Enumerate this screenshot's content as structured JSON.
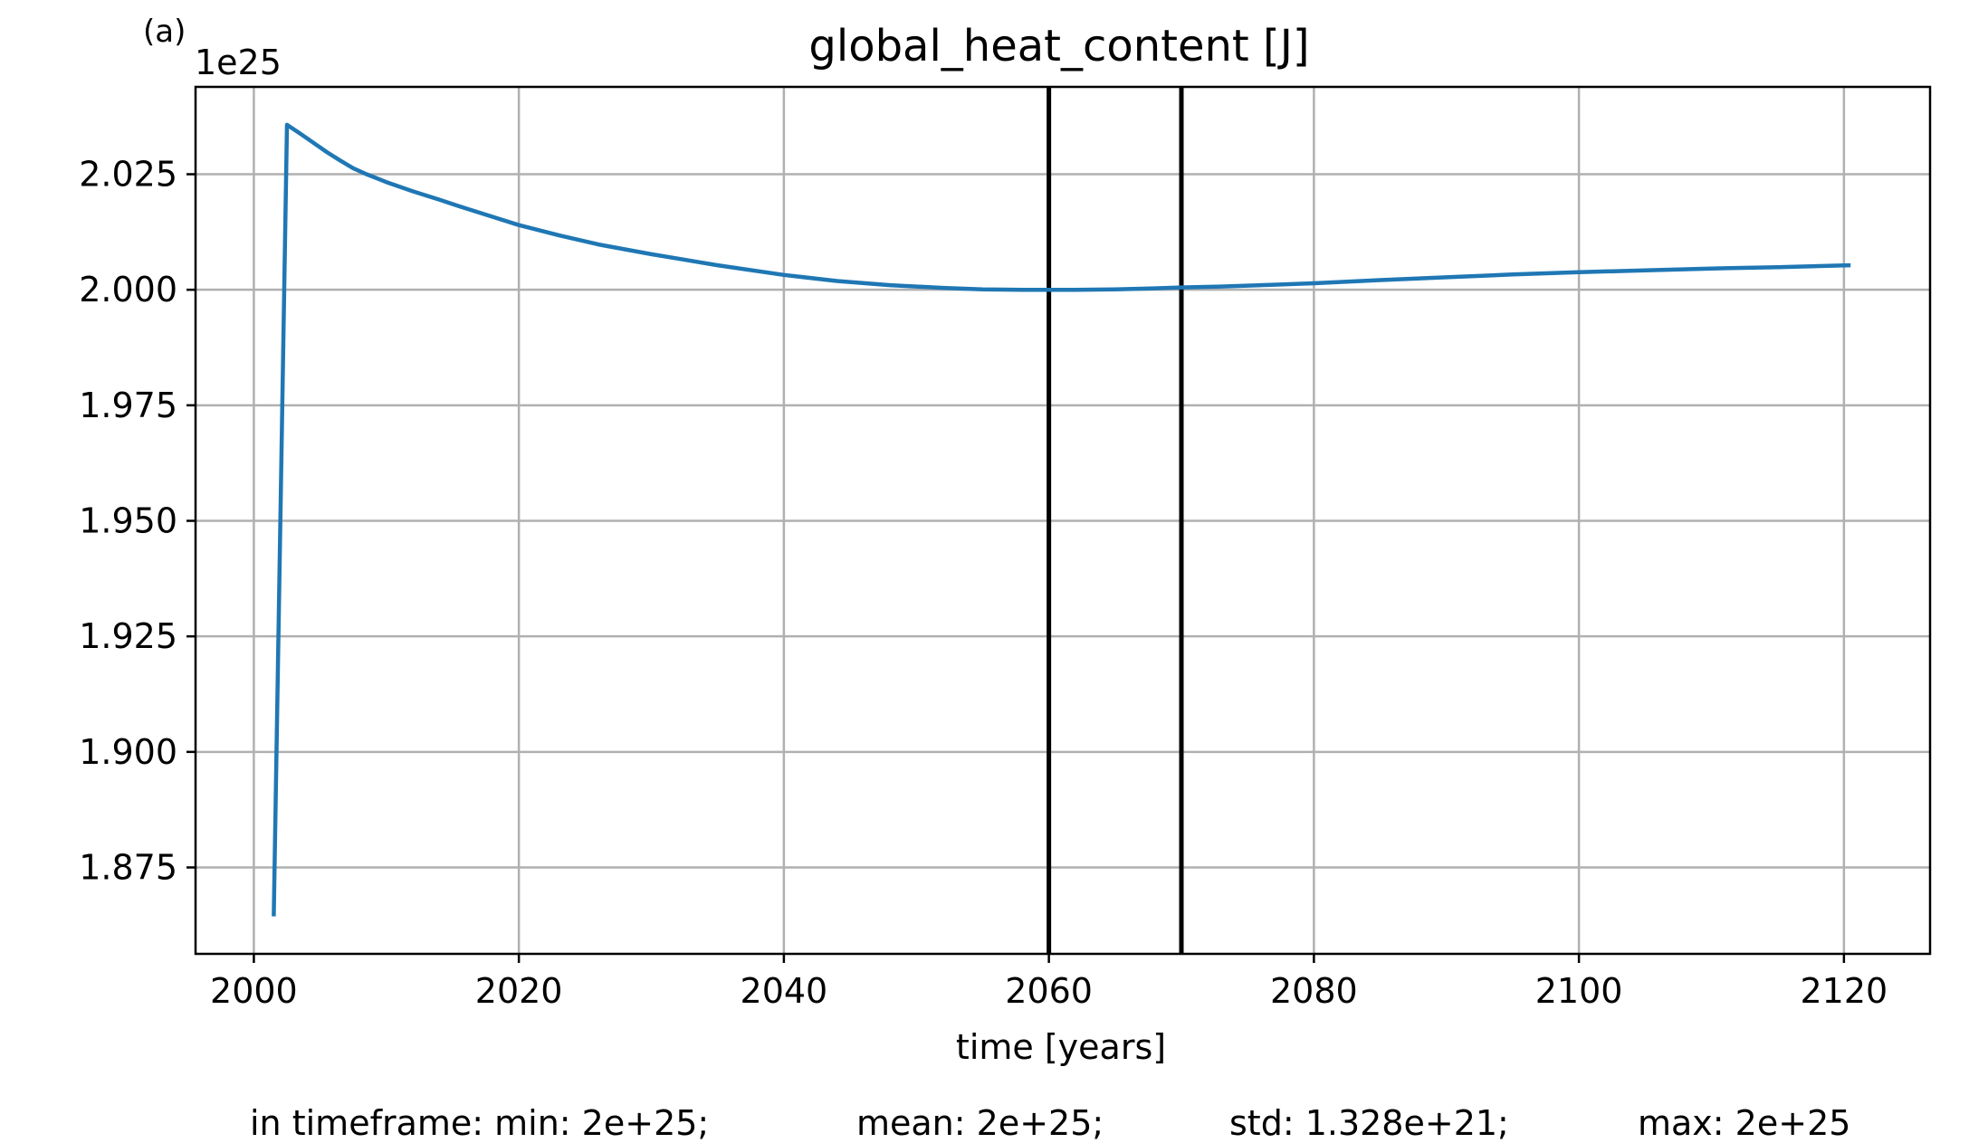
{
  "panel_label": "(a)",
  "chart_data": {
    "type": "line",
    "title": "global_heat_content [J]",
    "xlabel": "time [years]",
    "ylabel": "",
    "y_offset_label": "1e25",
    "xlim": [
      1995.6,
      2126.5
    ],
    "ylim": [
      1.8563,
      2.0439
    ],
    "x_ticks": [
      2000,
      2020,
      2040,
      2060,
      2080,
      2100,
      2120
    ],
    "x_tick_labels": [
      "2000",
      "2020",
      "2040",
      "2060",
      "2080",
      "2100",
      "2120"
    ],
    "y_ticks": [
      1.875,
      1.9,
      1.925,
      1.95,
      1.975,
      2.0,
      2.025
    ],
    "y_tick_labels": [
      "1.875",
      "1.900",
      "1.925",
      "1.950",
      "1.975",
      "2.000",
      "2.025"
    ],
    "grid": true,
    "vertical_lines": [
      2060,
      2070
    ],
    "series": [
      {
        "color": "#1f77b4",
        "x": [
          2001.5,
          2002.5,
          2003.5,
          2004.5,
          2005.5,
          2006.5,
          2007.5,
          2008.5,
          2010,
          2012,
          2014,
          2016,
          2018,
          2020,
          2023,
          2026,
          2030,
          2035,
          2040,
          2044,
          2048,
          2052,
          2055,
          2058,
          2060,
          2062,
          2065,
          2068,
          2070,
          2073,
          2076,
          2080,
          2085,
          2090,
          2095,
          2100,
          2105,
          2110,
          2115,
          2120.5
        ],
        "values": [
          1.8644,
          2.0357,
          2.0338,
          2.0318,
          2.0298,
          2.028,
          2.0263,
          2.025,
          2.0233,
          2.0213,
          2.0195,
          2.0176,
          2.0158,
          2.014,
          2.0118,
          2.0098,
          2.0077,
          2.0053,
          2.0032,
          2.0019,
          2.001,
          2.0004,
          2.0001,
          2.0,
          2.0,
          2.0,
          2.0001,
          2.0003,
          2.0005,
          2.0007,
          2.001,
          2.0014,
          2.0021,
          2.0027,
          2.0033,
          2.0038,
          2.0042,
          2.0046,
          2.0049,
          2.0053
        ]
      }
    ]
  },
  "stats": {
    "min": "in timeframe: min: 2e+25;",
    "mean": "mean: 2e+25;",
    "std": "std: 1.328e+21;",
    "max": "max: 2e+25"
  }
}
